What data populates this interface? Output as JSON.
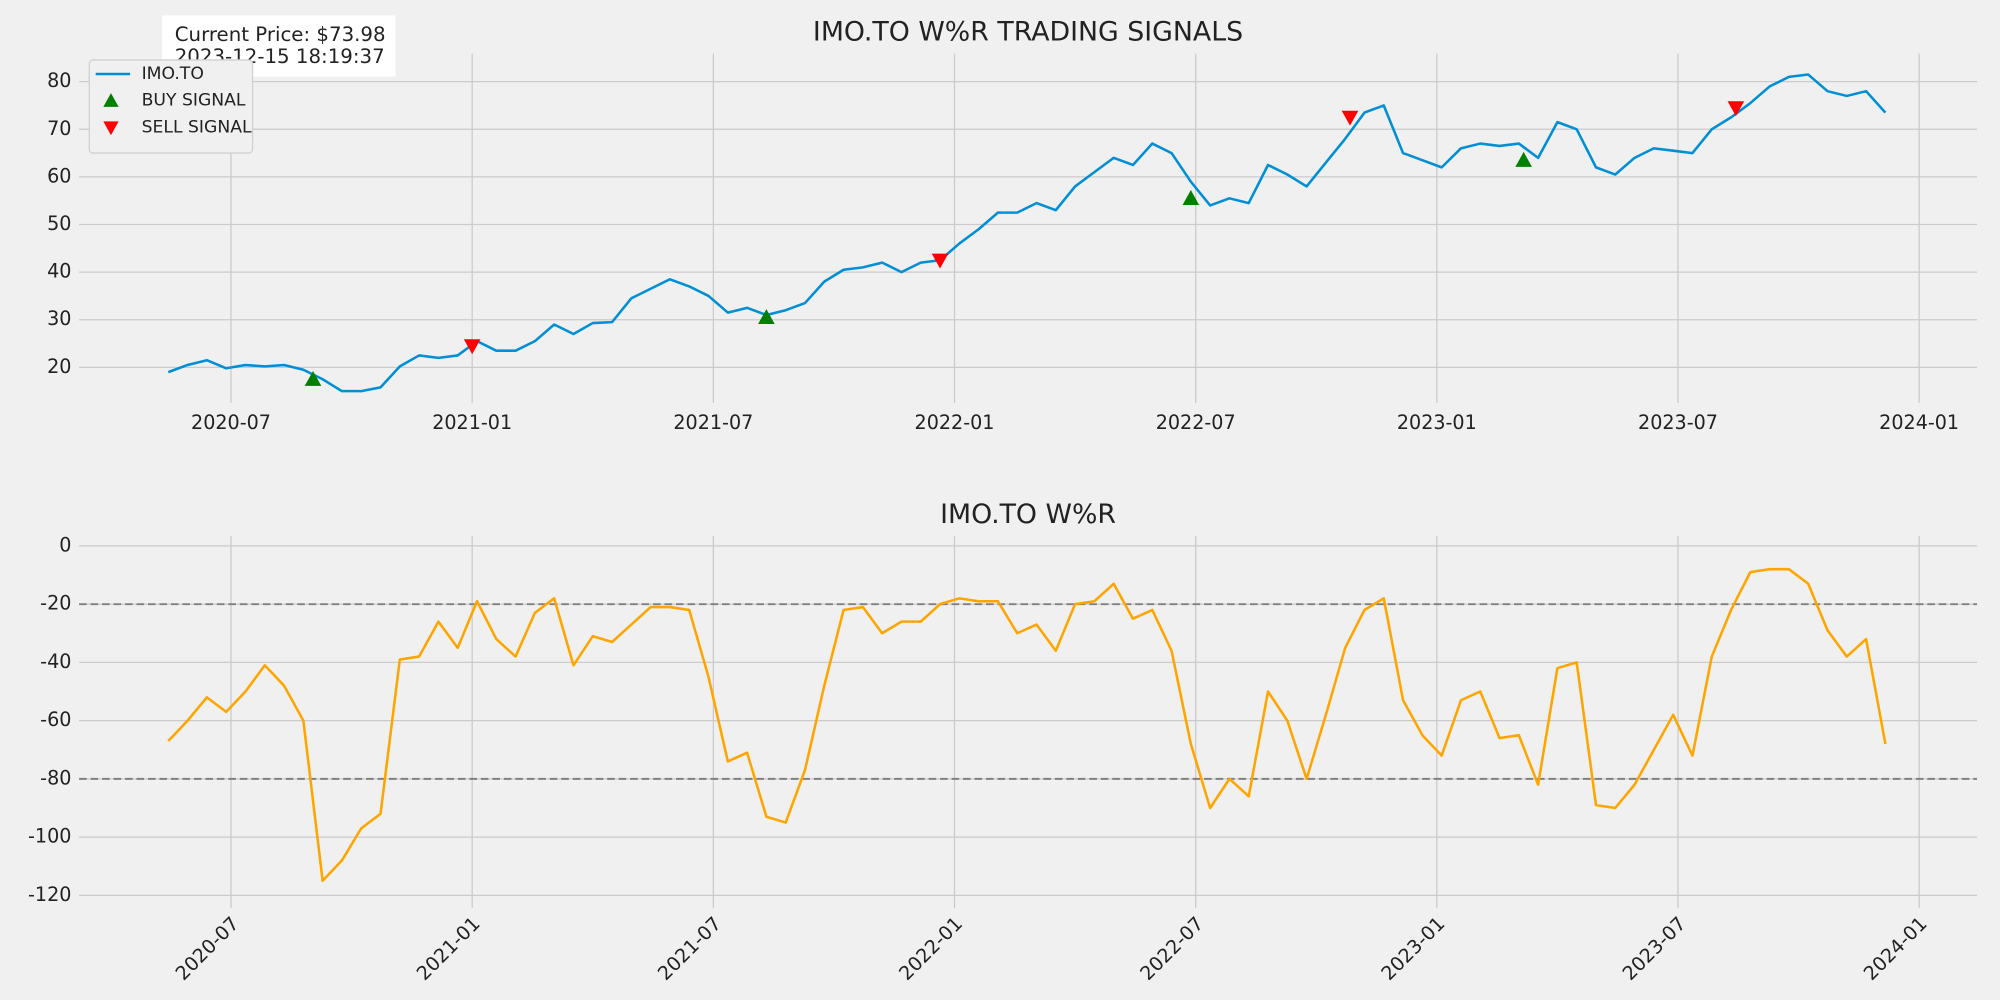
{
  "chart_data": [
    {
      "type": "line",
      "title": "IMO.TO W%R TRADING SIGNALS",
      "x": [
        2020.37,
        2020.41,
        2020.45,
        2020.49,
        2020.53,
        2020.57,
        2020.61,
        2020.65,
        2020.69,
        2020.73,
        2020.77,
        2020.81,
        2020.85,
        2020.89,
        2020.93,
        2020.97,
        2021.01,
        2021.05,
        2021.09,
        2021.13,
        2021.17,
        2021.21,
        2021.25,
        2021.29,
        2021.33,
        2021.37,
        2021.41,
        2021.45,
        2021.49,
        2021.53,
        2021.57,
        2021.61,
        2021.65,
        2021.69,
        2021.73,
        2021.77,
        2021.81,
        2021.85,
        2021.89,
        2021.93,
        2021.97,
        2022.01,
        2022.05,
        2022.09,
        2022.13,
        2022.17,
        2022.21,
        2022.25,
        2022.29,
        2022.33,
        2022.37,
        2022.41,
        2022.45,
        2022.49,
        2022.53,
        2022.57,
        2022.61,
        2022.65,
        2022.69,
        2022.73,
        2022.77,
        2022.81,
        2022.85,
        2022.89,
        2022.93,
        2022.97,
        2023.01,
        2023.05,
        2023.09,
        2023.13,
        2023.17,
        2023.21,
        2023.25,
        2023.29,
        2023.33,
        2023.37,
        2023.41,
        2023.45,
        2023.49,
        2023.53,
        2023.57,
        2023.61,
        2023.65,
        2023.69,
        2023.73,
        2023.77,
        2023.81,
        2023.85,
        2023.89,
        2023.93
      ],
      "series": [
        {
          "name": "IMO.TO",
          "color": "#008fd5",
          "values": [
            19,
            20.5,
            21.5,
            19.8,
            20.5,
            20.2,
            20.5,
            19.5,
            17.5,
            15,
            15,
            15.8,
            20.2,
            22.5,
            22,
            22.5,
            25.5,
            23.5,
            23.5,
            25.5,
            29,
            27,
            29.3,
            29.5,
            34.5,
            36.5,
            38.5,
            37,
            35,
            31.5,
            32.5,
            31,
            32,
            33.5,
            38,
            40.5,
            41,
            42,
            40,
            42,
            42.5,
            46,
            49,
            52.5,
            52.5,
            54.5,
            53,
            58,
            61,
            64,
            62.5,
            67,
            65,
            59,
            54,
            55.5,
            54.5,
            62.5,
            60.5,
            58,
            63,
            68,
            73.5,
            75,
            65,
            63.5,
            62,
            66,
            67,
            66.5,
            67,
            64,
            71.5,
            70,
            62,
            60.5,
            64,
            66,
            65.5,
            65,
            70,
            72.5,
            75.5,
            79,
            81,
            81.5,
            78,
            77,
            78,
            73.5
          ]
        },
        {
          "name": "BUY SIGNAL",
          "color": "#008000",
          "marker": "^",
          "x": [
            2020.67,
            2021.61,
            2022.49,
            2023.18
          ],
          "values": [
            17.5,
            30.5,
            55.5,
            63.5
          ]
        },
        {
          "name": "SELL SIGNAL",
          "color": "#ff0000",
          "marker": "v",
          "x": [
            2021.0,
            2021.97,
            2022.82,
            2023.62
          ],
          "values": [
            24.5,
            42.5,
            72.5,
            74.5
          ]
        }
      ],
      "annotations": [
        "Current Price: $73.98",
        "2023-12-15 18:19:37"
      ],
      "legend": "upper left",
      "xlim": [
        2020.185,
        2024.12
      ],
      "xticks": [
        {
          "value": 2020.5,
          "label": "2020-07"
        },
        {
          "value": 2021.0,
          "label": "2021-01"
        },
        {
          "value": 2021.5,
          "label": "2021-07"
        },
        {
          "value": 2022.0,
          "label": "2022-01"
        },
        {
          "value": 2022.5,
          "label": "2022-07"
        },
        {
          "value": 2023.0,
          "label": "2023-01"
        },
        {
          "value": 2023.5,
          "label": "2023-07"
        },
        {
          "value": 2024.0,
          "label": "2024-01"
        }
      ],
      "ylim": [
        12.5,
        85.9
      ],
      "yticks": [
        20,
        30,
        40,
        50,
        60,
        70,
        80
      ],
      "grid": true
    },
    {
      "type": "line",
      "title": "IMO.TO W%R",
      "color": "#ffa500",
      "x": [
        2020.37,
        2020.41,
        2020.45,
        2020.49,
        2020.53,
        2020.57,
        2020.61,
        2020.65,
        2020.69,
        2020.73,
        2020.77,
        2020.81,
        2020.85,
        2020.89,
        2020.93,
        2020.97,
        2021.01,
        2021.05,
        2021.09,
        2021.13,
        2021.17,
        2021.21,
        2021.25,
        2021.29,
        2021.33,
        2021.37,
        2021.41,
        2021.45,
        2021.49,
        2021.53,
        2021.57,
        2021.61,
        2021.65,
        2021.69,
        2021.73,
        2021.77,
        2021.81,
        2021.85,
        2021.89,
        2021.93,
        2021.97,
        2022.01,
        2022.05,
        2022.09,
        2022.13,
        2022.17,
        2022.21,
        2022.25,
        2022.29,
        2022.33,
        2022.37,
        2022.41,
        2022.45,
        2022.49,
        2022.53,
        2022.57,
        2022.61,
        2022.65,
        2022.69,
        2022.73,
        2022.77,
        2022.81,
        2022.85,
        2022.89,
        2022.93,
        2022.97,
        2023.01,
        2023.05,
        2023.09,
        2023.13,
        2023.17,
        2023.21,
        2023.25,
        2023.29,
        2023.33,
        2023.37,
        2023.41,
        2023.45,
        2023.49,
        2023.53,
        2023.57,
        2023.61,
        2023.65,
        2023.69,
        2023.73,
        2023.77,
        2023.81,
        2023.85,
        2023.89,
        2023.93
      ],
      "values": [
        -67,
        -60,
        -52,
        -57,
        -50,
        -41,
        -48,
        -60,
        -115,
        -108,
        -97,
        -92,
        -39,
        -38,
        -26,
        -35,
        -19,
        -32,
        -38,
        -23,
        -18,
        -41,
        -31,
        -33,
        -27,
        -21,
        -21,
        -22,
        -45,
        -74,
        -71,
        -93,
        -95,
        -77,
        -48,
        -22,
        -21,
        -30,
        -26,
        -26,
        -20,
        -18,
        -19,
        -19,
        -30,
        -27,
        -36,
        -20,
        -19,
        -13,
        -25,
        -22,
        -36,
        -68,
        -90,
        -80,
        -86,
        -50,
        -60,
        -80,
        -58,
        -35,
        -22,
        -18,
        -53,
        -65,
        -72,
        -53,
        -50,
        -66,
        -65,
        -82,
        -42,
        -40,
        -89,
        -90,
        -82,
        -70,
        -58,
        -72,
        -38,
        -22,
        -9,
        -8,
        -8,
        -13,
        -29,
        -38,
        -32,
        -68
      ],
      "reference_lines": [
        -20,
        -80
      ],
      "reference_line_color": "#808080",
      "reference_line_style": "dashed",
      "xlim": [
        2020.185,
        2024.12
      ],
      "xticks": [
        {
          "value": 2020.5,
          "label": "2020-07"
        },
        {
          "value": 2021.0,
          "label": "2021-01"
        },
        {
          "value": 2021.5,
          "label": "2021-07"
        },
        {
          "value": 2022.0,
          "label": "2022-01"
        },
        {
          "value": 2022.5,
          "label": "2022-07"
        },
        {
          "value": 2023.0,
          "label": "2023-01"
        },
        {
          "value": 2023.5,
          "label": "2023-07"
        },
        {
          "value": 2024.0,
          "label": "2024-01"
        }
      ],
      "xtick_rotation": 45,
      "ylim": [
        -124.4,
        3.5
      ],
      "yticks": [
        0,
        -20,
        -40,
        -60,
        -80,
        -100,
        -120
      ],
      "grid": true
    }
  ]
}
